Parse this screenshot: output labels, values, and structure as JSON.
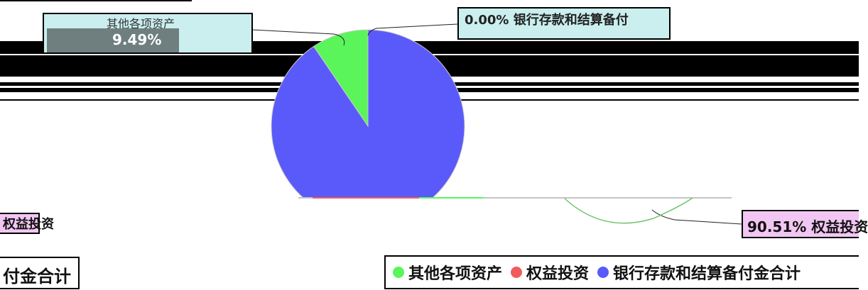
{
  "chart_data": {
    "type": "pie",
    "series": [
      {
        "name": "其他各项资产",
        "value": 9.49,
        "color": "#5af55a"
      },
      {
        "name": "权益投资",
        "value": 0.0,
        "color": "#f25b5b"
      },
      {
        "name": "银行存款和结算备付金合计",
        "value": 90.51,
        "color": "#5a5afa"
      }
    ],
    "legend_position": "bottom"
  },
  "labels": {
    "top_left_line1": "其他各项资产",
    "top_left_line2": "9.49%",
    "top_right": "0.00% 银行存款和结算备付",
    "left_mid": "权益投资",
    "bottom_left": "付金合计",
    "bottom_right": "90.51% 权益投资"
  },
  "legend": [
    {
      "label": "其他各项资产",
      "color": "#5af55a"
    },
    {
      "label": "权益投资",
      "color": "#f25b5b"
    },
    {
      "label": "银行存款和结算备付金合计",
      "color": "#5a5afa"
    }
  ]
}
